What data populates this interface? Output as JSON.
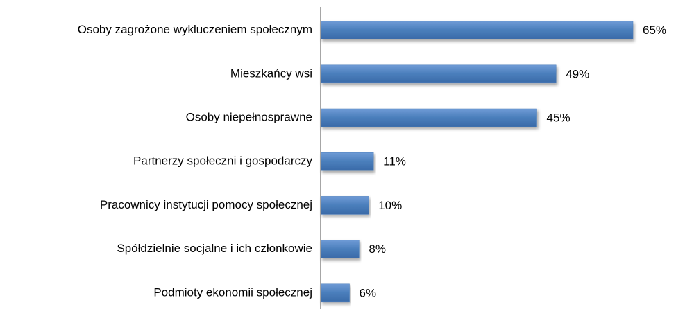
{
  "chart_data": {
    "type": "barh",
    "categories": [
      "Osoby zagrożone wykluczeniem społecznym",
      "Mieszkańcy wsi",
      "Osoby niepełnosprawne",
      "Partnerzy społeczni i gospodarczy",
      "Pracownicy instytucji pomocy społecznej",
      "Spółdzielnie socjalne i ich członkowie",
      "Podmioty ekonomii społecznej"
    ],
    "values": [
      65,
      49,
      45,
      11,
      10,
      8,
      6
    ],
    "value_labels": [
      "65%",
      "49%",
      "45%",
      "11%",
      "10%",
      "8%",
      "6%"
    ],
    "color": "#4a7ebb"
  }
}
